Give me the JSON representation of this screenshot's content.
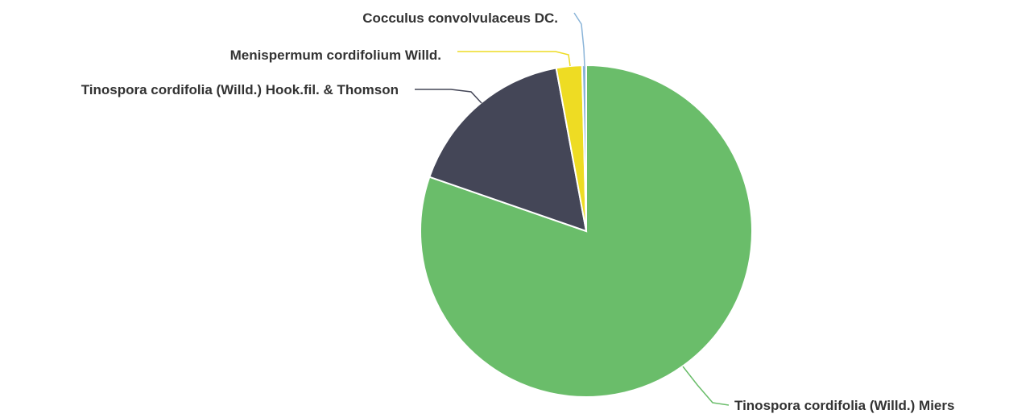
{
  "chart_data": {
    "type": "pie",
    "title": "",
    "start_angle_deg": 0,
    "direction": "clockwise",
    "legend": "none",
    "slices": [
      {
        "label": "Tinospora cordifolia (Willd.) Miers",
        "value": 80.3,
        "color": "#6abd6a"
      },
      {
        "label": "Tinospora cordifolia (Willd.) Hook.fil. & Thomson",
        "value": 16.8,
        "color": "#444657"
      },
      {
        "label": "Menispermum cordifolium Willd.",
        "value": 2.5,
        "color": "#eedc23"
      },
      {
        "label": "Cocculus convolvulaceus DC.",
        "value": 0.4,
        "color": "#8ab4d8"
      }
    ]
  }
}
